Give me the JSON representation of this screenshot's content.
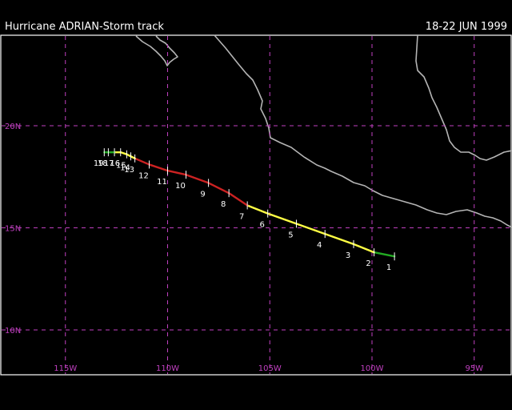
{
  "header": {
    "title": "Hurricane ADRIAN-Storm track",
    "dates": "18-22 JUN 1999"
  },
  "map": {
    "lat_labels": [
      "20N",
      "15N",
      "10N"
    ],
    "lon_labels": [
      "115W",
      "110W",
      "105W",
      "100W",
      "95W"
    ],
    "colors": {
      "frame": "#ffffff",
      "grid": "#c040c0",
      "coast": "#b4b4b4",
      "tropical_depression": "#22aa22",
      "tropical_storm": "#ffff44",
      "hurricane": "#cc2222"
    }
  },
  "track": {
    "points": [
      {
        "label": "1",
        "lon": -98.9,
        "lat": 13.6,
        "stage": "tropical_depression"
      },
      {
        "label": "2",
        "lon": -99.9,
        "lat": 13.8,
        "stage": "tropical_depression"
      },
      {
        "label": "3",
        "lon": -100.9,
        "lat": 14.2,
        "stage": "tropical_storm"
      },
      {
        "label": "4",
        "lon": -102.3,
        "lat": 14.7,
        "stage": "tropical_storm"
      },
      {
        "label": "5",
        "lon": -103.7,
        "lat": 15.2,
        "stage": "tropical_storm"
      },
      {
        "label": "6",
        "lon": -105.1,
        "lat": 15.7,
        "stage": "tropical_storm"
      },
      {
        "label": "7",
        "lon": -106.1,
        "lat": 16.1,
        "stage": "tropical_storm"
      },
      {
        "label": "8",
        "lon": -107.0,
        "lat": 16.7,
        "stage": "hurricane"
      },
      {
        "label": "9",
        "lon": -108.0,
        "lat": 17.2,
        "stage": "hurricane"
      },
      {
        "label": "10",
        "lon": -109.1,
        "lat": 17.6,
        "stage": "hurricane"
      },
      {
        "label": "11",
        "lon": -110.0,
        "lat": 17.8,
        "stage": "hurricane"
      },
      {
        "label": "12",
        "lon": -110.9,
        "lat": 18.1,
        "stage": "hurricane"
      },
      {
        "label": "13",
        "lon": -111.6,
        "lat": 18.4,
        "stage": "hurricane"
      },
      {
        "label": "14",
        "lon": -111.8,
        "lat": 18.5,
        "stage": "tropical_storm"
      },
      {
        "label": "15",
        "lon": -112.0,
        "lat": 18.6,
        "stage": "tropical_storm"
      },
      {
        "label": "16",
        "lon": -112.3,
        "lat": 18.7,
        "stage": "tropical_storm"
      },
      {
        "label": "17",
        "lon": -112.6,
        "lat": 18.7,
        "stage": "tropical_storm"
      },
      {
        "label": "18",
        "lon": -112.9,
        "lat": 18.7,
        "stage": "tropical_depression"
      },
      {
        "label": "19",
        "lon": -113.1,
        "lat": 18.7,
        "stage": "tropical_depression"
      }
    ]
  }
}
